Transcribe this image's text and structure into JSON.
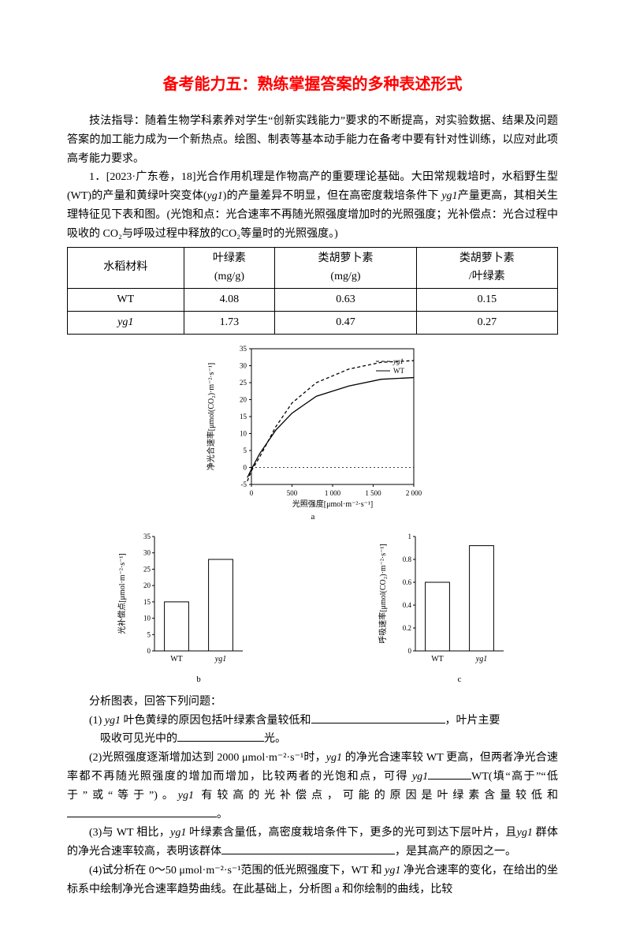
{
  "title": "备考能力五：熟练掌握答案的多种表述形式",
  "intro": "技法指导：随着生物学科素养对学生“创新实践能力”要求的不断提高，对实验数据、结果及问题答案的加工能力成为一个新热点。绘图、制表等基本动手能力在备考中要有针对性训练，以应对此项高考能力要求。",
  "q1_lead": "1．[2023·广东卷，18]光合作用机理是作物高产的重要理论基础。大田常规栽培时，水稻野生型(WT)的产量和黄绿叶突变体(",
  "q1_yg1": "yg1",
  "q1_lead2": ")的产量差异不明显，但在高密度栽培条件下",
  "q1_lead3": "产量更高，其相关生理特征见下表和图。(光饱和点：光合速率不再随光照强度增加时的光照强度；光补偿点：光合过程中吸收的 CO₂与呼吸过程中释放的CO₂等量时的光照强度。)",
  "table": {
    "col0": "水稻材料",
    "col1a": "叶绿素",
    "col1b": "(mg/g)",
    "col2a": "类胡萝卜素",
    "col2b": "(mg/g)",
    "col3a": "类胡萝卜素",
    "col3b": "/叶绿素",
    "rows": [
      {
        "r0": "WT",
        "r1": "4.08",
        "r2": "0.63",
        "r3": "0.15"
      },
      {
        "r0": "yg1",
        "r1": "1.73",
        "r2": "0.47",
        "r3": "0.27"
      }
    ]
  },
  "chart_a": {
    "type": "line-curve",
    "x_label": "光照强度[μmol·m⁻²·s⁻¹]",
    "y_label": "净光合速率[μmol(CO₂)·m⁻²·s⁻¹]",
    "x_ticks": [
      0,
      500,
      1000,
      1500,
      2000
    ],
    "y_ticks": [
      -5,
      0,
      5,
      10,
      15,
      20,
      25,
      30,
      35
    ],
    "series": [
      {
        "name": "yg1",
        "style": "dashed",
        "color": "#000000",
        "points": [
          [
            -50,
            -4
          ],
          [
            0,
            -1
          ],
          [
            100,
            3
          ],
          [
            300,
            12
          ],
          [
            500,
            19
          ],
          [
            800,
            25
          ],
          [
            1200,
            29
          ],
          [
            1600,
            31
          ],
          [
            2000,
            31.5
          ]
        ]
      },
      {
        "name": "WT",
        "style": "solid",
        "color": "#000000",
        "points": [
          [
            -50,
            -3
          ],
          [
            0,
            -0.5
          ],
          [
            100,
            4
          ],
          [
            300,
            11
          ],
          [
            500,
            16
          ],
          [
            800,
            21
          ],
          [
            1200,
            24
          ],
          [
            1600,
            26
          ],
          [
            2000,
            26.5
          ]
        ]
      }
    ],
    "caption": "a"
  },
  "chart_b": {
    "type": "bar",
    "y_label": "光补偿点[μmol·m⁻²·s⁻¹]",
    "y_ticks": [
      0,
      5,
      10,
      15,
      20,
      25,
      30,
      35
    ],
    "categories": [
      "WT",
      "yg1"
    ],
    "values": [
      15,
      28
    ],
    "bar_fill": "#ffffff",
    "bar_stroke": "#000000",
    "caption": "b"
  },
  "chart_c": {
    "type": "bar",
    "y_label": "呼吸速率[μmol(CO₂)·m⁻²·s⁻¹]",
    "y_ticks": [
      0,
      0.2,
      0.4,
      0.6,
      0.8,
      1.0
    ],
    "categories": [
      "WT",
      "yg1"
    ],
    "values": [
      0.6,
      0.92
    ],
    "bar_fill": "#ffffff",
    "bar_stroke": "#000000",
    "caption": "c"
  },
  "analysis_lead": "分析图表，回答下列问题：",
  "q1_1a": "(1) ",
  "q1_1b": " 叶色黄绿的原因包括叶绿素含量较低和",
  "q1_1c": "，叶片主要",
  "q1_1d": "吸收可见光中的",
  "q1_1e": "光。",
  "q1_2a": "(2)光照强度逐渐增加达到 2000 μmol·m⁻²·s⁻¹时，",
  "q1_2b": " 的净光合速率较 WT 更高，但两者净光合速率都不再随光照强度的增加而增加，比较两者的光饱和点，可得",
  "q1_2c": "WT(填“高于”“低于”或“等于”)。",
  "q1_2d": " 有较高的光补偿点，可能的原因是叶绿素含量较低和",
  "q1_2e": "。",
  "q1_3a": "(3)与 WT 相比，",
  "q1_3b": " 叶绿素含量低，高密度栽培条件下，更多的光可到达下层叶片，且",
  "q1_3c": " 群体的净光合速率较高，表明该群体",
  "q1_3d": "，是其高产的原因之一。",
  "q1_4": "(4)试分析在 0～50 μmol·m⁻²·s⁻¹范围的低光照强度下，WT 和 ",
  "q1_4b": " 净光合速率的变化，在给出的坐标系中绘制净光合速率趋势曲线。在此基础上，分析图 a 和你绘制的曲线，比较",
  "colors": {
    "background": "#ffffff",
    "text": "#000000",
    "title": "#ff0000",
    "table_border": "#000000",
    "axis": "#000000"
  },
  "fonts": {
    "body_family": "SimSun",
    "title_family": "SimHei",
    "body_size_pt": 10.5,
    "title_size_pt": 16
  }
}
